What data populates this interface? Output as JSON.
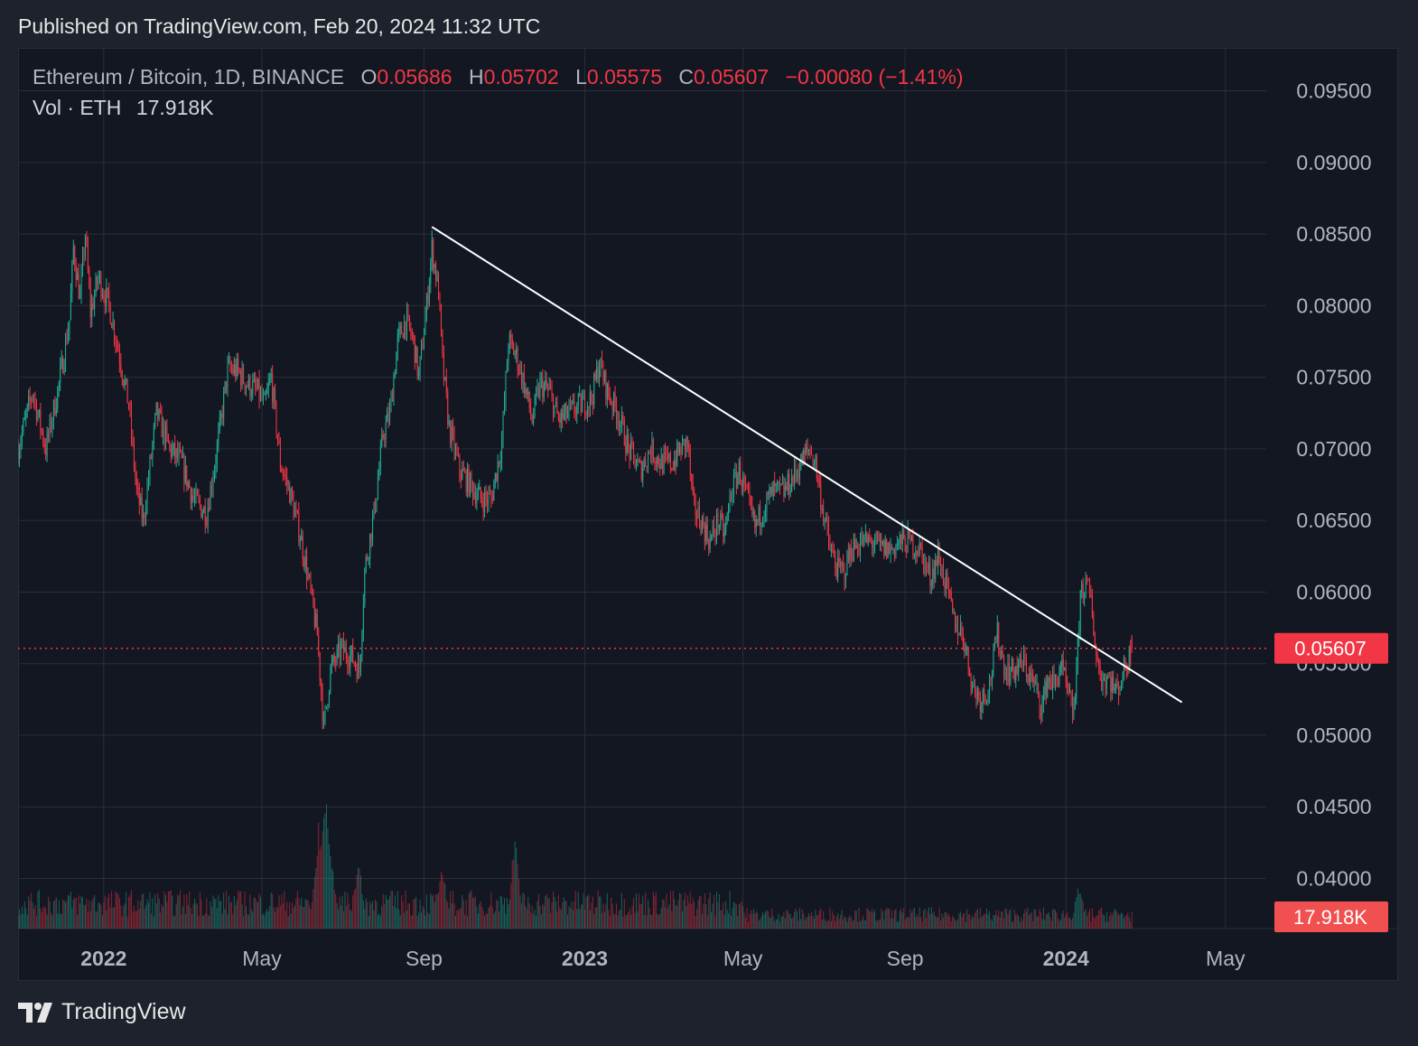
{
  "header": {
    "published": "Published on TradingView.com, Feb 20, 2024 11:32 UTC"
  },
  "legend": {
    "symbol": "Ethereum / Bitcoin, 1D, BINANCE",
    "o_label": "O",
    "o_value": "0.05686",
    "h_label": "H",
    "h_value": "0.05702",
    "l_label": "L",
    "l_value": "0.05575",
    "c_label": "C",
    "c_value": "0.05607",
    "change": "−0.00080 (−1.41%)",
    "vol_label": "Vol · ETH",
    "vol_value": "17.918K"
  },
  "price_badge": "0.05607",
  "volume_badge": "17.918K",
  "footer": {
    "brand": "TradingView"
  },
  "colors": {
    "up": "#22ab94",
    "down": "#f23645",
    "background": "#131722",
    "grid": "#2a2e39",
    "trendline": "#ffffff"
  },
  "icons": [
    "tradingview-logo-icon"
  ],
  "chart_data": {
    "type": "candlestick",
    "symbol": "ETH/BTC",
    "interval": "1D",
    "y_axis": {
      "side": "right",
      "ylim": [
        0.0365,
        0.098
      ],
      "ticks": [
        "0.09500",
        "0.09000",
        "0.08500",
        "0.08000",
        "0.07500",
        "0.07000",
        "0.06500",
        "0.06000",
        "0.05500",
        "0.05000",
        "0.04500",
        "0.04000"
      ]
    },
    "x_axis": {
      "range": [
        "2021-10-28",
        "2024-06-01"
      ],
      "ticks": [
        {
          "label": "2022",
          "date": "2022-01-01",
          "bold": true
        },
        {
          "label": "May",
          "date": "2022-05-01",
          "bold": false
        },
        {
          "label": "Sep",
          "date": "2022-09-01",
          "bold": false
        },
        {
          "label": "2023",
          "date": "2023-01-01",
          "bold": true
        },
        {
          "label": "May",
          "date": "2023-05-01",
          "bold": false
        },
        {
          "label": "Sep",
          "date": "2023-09-01",
          "bold": false
        },
        {
          "label": "2024",
          "date": "2024-01-01",
          "bold": true
        },
        {
          "label": "May",
          "date": "2024-05-01",
          "bold": false
        }
      ]
    },
    "grid": true,
    "last_price": 0.05607,
    "price_line": "dotted",
    "trendline": {
      "from": {
        "date": "2022-09-07",
        "price": 0.0855
      },
      "to": {
        "date": "2024-03-29",
        "price": 0.0523
      }
    },
    "close_path": [
      {
        "date": "2021-10-28",
        "close": 0.07
      },
      {
        "date": "2021-11-08",
        "close": 0.074
      },
      {
        "date": "2021-11-18",
        "close": 0.07
      },
      {
        "date": "2021-11-28",
        "close": 0.0745
      },
      {
        "date": "2021-12-06",
        "close": 0.079
      },
      {
        "date": "2021-12-09",
        "close": 0.084
      },
      {
        "date": "2021-12-14",
        "close": 0.0805
      },
      {
        "date": "2021-12-18",
        "close": 0.085
      },
      {
        "date": "2021-12-22",
        "close": 0.0795
      },
      {
        "date": "2021-12-28",
        "close": 0.082
      },
      {
        "date": "2022-01-05",
        "close": 0.08
      },
      {
        "date": "2022-01-12",
        "close": 0.077
      },
      {
        "date": "2022-01-20",
        "close": 0.073
      },
      {
        "date": "2022-01-26",
        "close": 0.067
      },
      {
        "date": "2022-01-31",
        "close": 0.065
      },
      {
        "date": "2022-02-10",
        "close": 0.0725
      },
      {
        "date": "2022-02-20",
        "close": 0.07
      },
      {
        "date": "2022-03-01",
        "close": 0.069
      },
      {
        "date": "2022-03-10",
        "close": 0.0665
      },
      {
        "date": "2022-03-20",
        "close": 0.0655
      },
      {
        "date": "2022-03-28",
        "close": 0.07
      },
      {
        "date": "2022-04-05",
        "close": 0.0755
      },
      {
        "date": "2022-04-12",
        "close": 0.0755
      },
      {
        "date": "2022-04-20",
        "close": 0.0745
      },
      {
        "date": "2022-04-28",
        "close": 0.074
      },
      {
        "date": "2022-05-03",
        "close": 0.073
      },
      {
        "date": "2022-05-08",
        "close": 0.075
      },
      {
        "date": "2022-05-15",
        "close": 0.069
      },
      {
        "date": "2022-05-22",
        "close": 0.067
      },
      {
        "date": "2022-05-30",
        "close": 0.064
      },
      {
        "date": "2022-06-05",
        "close": 0.061
      },
      {
        "date": "2022-06-12",
        "close": 0.057
      },
      {
        "date": "2022-06-17",
        "close": 0.0505
      },
      {
        "date": "2022-06-22",
        "close": 0.0545
      },
      {
        "date": "2022-06-30",
        "close": 0.056
      },
      {
        "date": "2022-07-08",
        "close": 0.0555
      },
      {
        "date": "2022-07-14",
        "close": 0.0545
      },
      {
        "date": "2022-07-18",
        "close": 0.0615
      },
      {
        "date": "2022-07-25",
        "close": 0.0655
      },
      {
        "date": "2022-08-01",
        "close": 0.071
      },
      {
        "date": "2022-08-06",
        "close": 0.0725
      },
      {
        "date": "2022-08-12",
        "close": 0.0775
      },
      {
        "date": "2022-08-18",
        "close": 0.079
      },
      {
        "date": "2022-08-24",
        "close": 0.0775
      },
      {
        "date": "2022-08-28",
        "close": 0.075
      },
      {
        "date": "2022-09-03",
        "close": 0.08
      },
      {
        "date": "2022-09-07",
        "close": 0.084
      },
      {
        "date": "2022-09-12",
        "close": 0.081
      },
      {
        "date": "2022-09-15",
        "close": 0.076
      },
      {
        "date": "2022-09-20",
        "close": 0.0715
      },
      {
        "date": "2022-09-28",
        "close": 0.0685
      },
      {
        "date": "2022-10-06",
        "close": 0.0675
      },
      {
        "date": "2022-10-14",
        "close": 0.0665
      },
      {
        "date": "2022-10-22",
        "close": 0.0665
      },
      {
        "date": "2022-10-30",
        "close": 0.0705
      },
      {
        "date": "2022-11-04",
        "close": 0.0775
      },
      {
        "date": "2022-11-10",
        "close": 0.0765
      },
      {
        "date": "2022-11-16",
        "close": 0.0745
      },
      {
        "date": "2022-11-22",
        "close": 0.072
      },
      {
        "date": "2022-11-28",
        "close": 0.0745
      },
      {
        "date": "2022-12-05",
        "close": 0.074
      },
      {
        "date": "2022-12-12",
        "close": 0.072
      },
      {
        "date": "2022-12-20",
        "close": 0.0725
      },
      {
        "date": "2022-12-28",
        "close": 0.073
      },
      {
        "date": "2023-01-06",
        "close": 0.0735
      },
      {
        "date": "2023-01-12",
        "close": 0.076
      },
      {
        "date": "2023-01-18",
        "close": 0.074
      },
      {
        "date": "2023-01-26",
        "close": 0.0725
      },
      {
        "date": "2023-02-03",
        "close": 0.07
      },
      {
        "date": "2023-02-12",
        "close": 0.0685
      },
      {
        "date": "2023-02-20",
        "close": 0.07
      },
      {
        "date": "2023-02-28",
        "close": 0.069
      },
      {
        "date": "2023-03-08",
        "close": 0.069
      },
      {
        "date": "2023-03-15",
        "close": 0.07
      },
      {
        "date": "2023-03-20",
        "close": 0.0705
      },
      {
        "date": "2023-03-24",
        "close": 0.066
      },
      {
        "date": "2023-03-30",
        "close": 0.065
      },
      {
        "date": "2023-04-06",
        "close": 0.0635
      },
      {
        "date": "2023-04-12",
        "close": 0.065
      },
      {
        "date": "2023-04-17",
        "close": 0.064
      },
      {
        "date": "2023-04-22",
        "close": 0.067
      },
      {
        "date": "2023-04-28",
        "close": 0.0685
      },
      {
        "date": "2023-05-04",
        "close": 0.0665
      },
      {
        "date": "2023-05-10",
        "close": 0.0645
      },
      {
        "date": "2023-05-17",
        "close": 0.066
      },
      {
        "date": "2023-05-24",
        "close": 0.067
      },
      {
        "date": "2023-06-01",
        "close": 0.067
      },
      {
        "date": "2023-06-08",
        "close": 0.068
      },
      {
        "date": "2023-06-14",
        "close": 0.069
      },
      {
        "date": "2023-06-20",
        "close": 0.07
      },
      {
        "date": "2023-06-25",
        "close": 0.069
      },
      {
        "date": "2023-06-30",
        "close": 0.066
      },
      {
        "date": "2023-07-06",
        "close": 0.063
      },
      {
        "date": "2023-07-12",
        "close": 0.0615
      },
      {
        "date": "2023-07-17",
        "close": 0.0615
      },
      {
        "date": "2023-07-22",
        "close": 0.063
      },
      {
        "date": "2023-07-30",
        "close": 0.0635
      },
      {
        "date": "2023-08-07",
        "close": 0.0635
      },
      {
        "date": "2023-08-15",
        "close": 0.063
      },
      {
        "date": "2023-08-22",
        "close": 0.063
      },
      {
        "date": "2023-08-28",
        "close": 0.0635
      },
      {
        "date": "2023-09-04",
        "close": 0.0635
      },
      {
        "date": "2023-09-12",
        "close": 0.063
      },
      {
        "date": "2023-09-20",
        "close": 0.061
      },
      {
        "date": "2023-09-26",
        "close": 0.0625
      },
      {
        "date": "2023-10-02",
        "close": 0.0605
      },
      {
        "date": "2023-10-08",
        "close": 0.058
      },
      {
        "date": "2023-10-15",
        "close": 0.057
      },
      {
        "date": "2023-10-22",
        "close": 0.0535
      },
      {
        "date": "2023-10-28",
        "close": 0.0525
      },
      {
        "date": "2023-11-04",
        "close": 0.0535
      },
      {
        "date": "2023-11-10",
        "close": 0.057
      },
      {
        "date": "2023-11-16",
        "close": 0.0545
      },
      {
        "date": "2023-11-22",
        "close": 0.0545
      },
      {
        "date": "2023-11-30",
        "close": 0.055
      },
      {
        "date": "2023-12-08",
        "close": 0.0535
      },
      {
        "date": "2023-12-14",
        "close": 0.052
      },
      {
        "date": "2023-12-18",
        "close": 0.054
      },
      {
        "date": "2023-12-24",
        "close": 0.0535
      },
      {
        "date": "2023-12-28",
        "close": 0.055
      },
      {
        "date": "2024-01-02",
        "close": 0.053
      },
      {
        "date": "2024-01-06",
        "close": 0.0515
      },
      {
        "date": "2024-01-09",
        "close": 0.054
      },
      {
        "date": "2024-01-12",
        "close": 0.06
      },
      {
        "date": "2024-01-16",
        "close": 0.0605
      },
      {
        "date": "2024-01-20",
        "close": 0.0595
      },
      {
        "date": "2024-01-24",
        "close": 0.0555
      },
      {
        "date": "2024-01-28",
        "close": 0.054
      },
      {
        "date": "2024-02-03",
        "close": 0.054
      },
      {
        "date": "2024-02-08",
        "close": 0.053
      },
      {
        "date": "2024-02-12",
        "close": 0.054
      },
      {
        "date": "2024-02-16",
        "close": 0.055
      },
      {
        "date": "2024-02-20",
        "close": 0.05607
      }
    ],
    "volume_spikes": [
      {
        "date": "2022-06-13",
        "rel": 0.72
      },
      {
        "date": "2022-06-18",
        "rel": 1.0
      },
      {
        "date": "2022-06-22",
        "rel": 0.6
      },
      {
        "date": "2022-11-09",
        "rel": 0.65
      },
      {
        "date": "2022-07-13",
        "rel": 0.5
      },
      {
        "date": "2022-09-15",
        "rel": 0.45
      },
      {
        "date": "2024-01-11",
        "rel": 0.32
      }
    ]
  }
}
